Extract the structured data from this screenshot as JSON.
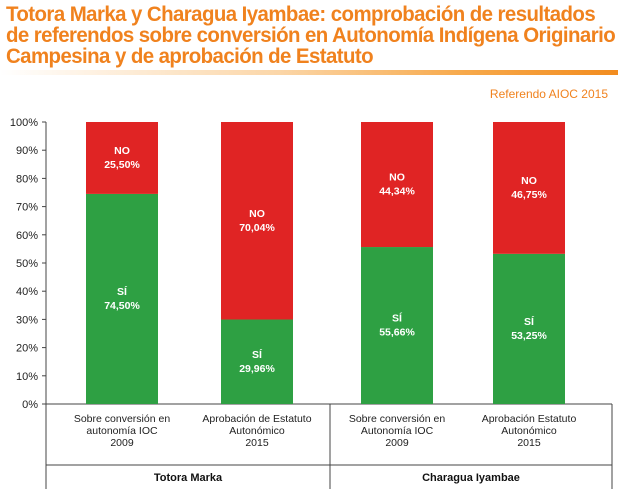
{
  "title_lines": [
    "Totora Marka y Charagua Iyambae: comprobación de resultados",
    "de referendos sobre conversión en Autonomía Indígena Originario",
    "Campesina y de aprobación de Estatuto"
  ],
  "source": "Referendo AIOC 2015",
  "colors": {
    "si": "#2ea043",
    "no": "#e02424",
    "accent": "#f0821e"
  },
  "chart_data": {
    "type": "bar",
    "stacked": true,
    "percent_stacked": true,
    "title": "",
    "xlabel": "",
    "ylabel": "",
    "ylim": [
      0,
      100
    ],
    "yticks": [
      "0%",
      "10%",
      "20%",
      "30%",
      "40%",
      "50%",
      "60%",
      "70%",
      "80%",
      "90%",
      "100%"
    ],
    "categories": [
      [
        "Sobre conversión en",
        "autonomía IOC",
        "2009"
      ],
      [
        "Aprobación de Estatuto",
        "Autonómico",
        "2015"
      ],
      [
        "Sobre conversión en",
        "Autonomía IOC",
        "2009"
      ],
      [
        "Aprobación Estatuto",
        "Autonómico",
        "2015"
      ]
    ],
    "groups": [
      {
        "name": "Totora Marka",
        "categories": [
          0,
          1
        ]
      },
      {
        "name": "Charagua Iyambae",
        "categories": [
          2,
          3
        ]
      }
    ],
    "series": [
      {
        "name": "SÍ",
        "values": [
          74.5,
          29.96,
          55.66,
          53.25
        ],
        "labels": [
          "74,50%",
          "29,96%",
          "55,66%",
          "53,25%"
        ]
      },
      {
        "name": "NO",
        "values": [
          25.5,
          70.04,
          44.34,
          46.75
        ],
        "labels": [
          "25,50%",
          "70,04%",
          "44,34%",
          "46,75%"
        ]
      }
    ],
    "grid": false,
    "legend": "none"
  }
}
